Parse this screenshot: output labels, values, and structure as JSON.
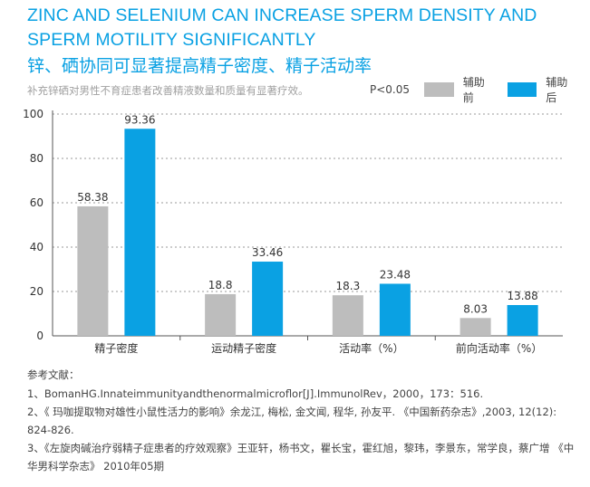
{
  "title_en": "ZINC AND SELENIUM CAN INCREASE SPERM DENSITY AND SPERM MOTILITY SIGNIFICANTLY",
  "title_cn": "锌、硒协同可显著提高精子密度、精子活动率",
  "subtitle": "补充锌硒对男性不育症患者改善精液数量和质量有显著疗效。",
  "legend": {
    "p_value": "P<0.05",
    "before_label": "辅助前",
    "after_label": "辅助后"
  },
  "colors": {
    "before": "#bdbdbd",
    "after": "#0aa1e3",
    "title": "#0aa1e3"
  },
  "chart_data": {
    "type": "bar",
    "categories": [
      "精子密度",
      "运动精子密度",
      "活动率（%）",
      "前向活动率（%）"
    ],
    "series": [
      {
        "name": "辅助前",
        "values": [
          58.38,
          18.8,
          18.3,
          8.03
        ],
        "labels": [
          "58.38",
          "18.8",
          "18.3",
          "8.03"
        ]
      },
      {
        "name": "辅助后",
        "values": [
          93.36,
          33.46,
          23.48,
          13.88
        ],
        "labels": [
          "93.36",
          "33.46",
          "23.48",
          "13.88"
        ]
      }
    ],
    "ylim": [
      0,
      100
    ],
    "yticks": [
      0,
      20,
      40,
      60,
      80,
      100
    ],
    "grid": true,
    "legend_position": "top-right"
  },
  "references": {
    "heading": "参考文献：",
    "items": [
      "1、BomanHG.Innateimmunityandthenormalmicroflor[J].ImmunolRev，2000，173：516.",
      "2、《 玛咖提取物对雄性小鼠性活力的影响》余龙江, 梅松, 金文闻, 程华, 孙友平. 《中国新药杂志》,2003, 12(12): 824-826.",
      "3、《左旋肉碱治疗弱精子症患者的疗效观察》王亚轩，杨书文，瞿长宝，霍红旭，黎玮，李景东，常学良，蔡广增 《中华男科学杂志》 2010年05期"
    ]
  }
}
